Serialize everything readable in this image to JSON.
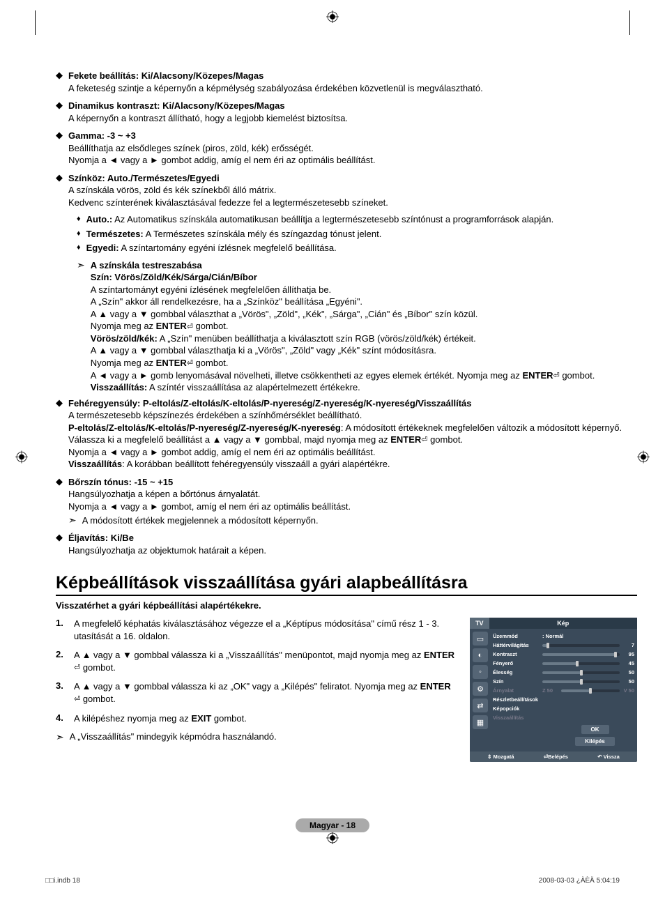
{
  "items": [
    {
      "title": "Fekete beállítás: Ki/Alacsony/Közepes/Magas",
      "body": [
        "A feketeség szintje a képernyőn a képmélység szabályozása érdekében közvetlenül is megválasztható."
      ]
    },
    {
      "title": "Dinamikus kontraszt: Ki/Alacsony/Közepes/Magas",
      "body": [
        "A képernyőn a kontraszt állítható, hogy a legjobb kiemelést biztosítsa."
      ]
    },
    {
      "title": "Gamma: -3 ~ +3",
      "body": [
        "Beállíthatja az elsődleges színek (piros, zöld, kék) erősségét.",
        "Nyomja a ◄ vagy a ► gombot addig, amíg el nem éri az optimális beállítást."
      ]
    },
    {
      "title": "Színköz: Auto./Természetes/Egyedi",
      "body": [
        "A színskála vörös, zöld és kék színekből álló mátrix.",
        "Kedvenc színterének kiválasztásával fedezze fel a legtermészetesebb színeket."
      ]
    }
  ],
  "subs": [
    {
      "k": "Auto.:",
      "v": "Az Automatikus színskála automatikusan beállítja a legtermészetesebb színtónust a programforrások alapján."
    },
    {
      "k": "Természetes:",
      "v": "A Természetes színskála mély és színgazdag tónust jelent."
    },
    {
      "k": "Egyedi:",
      "v": "A színtartomány egyéni ízlésnek megfelelő beállítása."
    }
  ],
  "custom": {
    "title": "A színskála testreszabása",
    "line1": "Szín: Vörös/Zöld/Kék/Sárga/Cián/Bíbor",
    "p1": "A színtartományt egyéni ízlésének megfelelően állíthatja be.",
    "p2": "A „Szín\" akkor áll rendelkezésre, ha a „Színköz\" beállítása „Egyéni\".",
    "p3": "A ▲ vagy a ▼ gombbal választhat a „Vörös\", „Zöld\", „Kék\", „Sárga\", „Cián\" és „Bíbor\" szín közül.",
    "p4a": "Nyomja meg az ",
    "enter": "ENTER",
    "p4b": " gombot.",
    "rgb_k": "Vörös/zöld/kék:",
    "rgb_v": " A „Szín\" menüben beállíthatja a kiválasztott szín RGB (vörös/zöld/kék) értékeit.",
    "p5": "A ▲ vagy a ▼ gombbal választhatja ki a „Vörös\", „Zöld\" vagy „Kék\" színt módosításra.",
    "p6": "A ◄ vagy a ► gomb lenyomásával növelheti, illetve csökkentheti az egyes elemek értékét. Nyomja meg az ",
    "reset_k": "Visszaállítás:",
    "reset_v": " A színtér visszaállítása az alapértelmezett értékekre."
  },
  "wb": {
    "title": "Fehéregyensúly: P-eltolás/Z-eltolás/K-eltolás/P-nyereség/Z-nyereség/K-nyereség/Visszaállítás",
    "p1": "A természetesebb képszínezés érdekében a színhőmérséklet beállítható.",
    "p2k": "P-eltolás/Z-eltolás/K-eltolás/P-nyereség/Z-nyereség/K-nyereség",
    "p2v": ": A módosított értékeknek megfelelően változik a módosított képernyő.",
    "p3": "Válassza ki a megfelelő beállítást a ▲ vagy a ▼ gombbal, majd nyomja meg az ",
    "p3b": " gombot.",
    "p4": "Nyomja a ◄ vagy a ► gombot addig, amíg el nem éri az optimális beállítást.",
    "p5k": "Visszaállítás",
    "p5v": ": A korábban beállított fehéregyensúly visszaáll a gyári alapértékre."
  },
  "skin": {
    "title": "Bőrszín tónus: -15 ~ +15",
    "p1": "Hangsúlyozhatja a képen a bőrtónus árnyalatát.",
    "p2": "Nyomja a ◄ vagy a ► gombot, amíg el nem éri az optimális beállítást.",
    "note": "A módosított értékek megjelennek a módosított képernyőn."
  },
  "edge": {
    "title": "Éljavítás: Ki/Be",
    "p1": "Hangsúlyozhatja az objektumok határait a képen."
  },
  "section": "Képbeállítások visszaállítása gyári alapbeállításra",
  "intro": "Visszatérhet a gyári képbeállítási alapértékekre.",
  "steps": [
    "A megfelelő képhatás kiválasztásához végezze el a „Képtípus módosítása\" című rész 1 - 3. utasítását a 16. oldalon.",
    "A ▲ vagy a ▼ gombbal válassza ki a „Visszaállítás\" menüpontot, majd nyomja meg az ENTER⏎ gombot.",
    "A ▲ vagy a ▼ gombbal válassza ki az „OK\" vagy a „Kilépés\" feliratot. Nyomja meg az ENTER⏎ gombot.",
    "A kilépéshez nyomja meg az EXIT gombot."
  ],
  "step_note": "A „Visszaállítás\" mindegyik képmódra használandó.",
  "osd": {
    "tv": "TV",
    "header": "Kép",
    "items": [
      {
        "label": "Üzemmód",
        "norm": ": Normál"
      },
      {
        "label": "Háttérvilágítás",
        "val": 7,
        "pct": 7
      },
      {
        "label": "Kontraszt",
        "val": 95,
        "pct": 95
      },
      {
        "label": "Fényerő",
        "val": 45,
        "pct": 45
      },
      {
        "label": "Élesség",
        "val": 50,
        "pct": 50
      },
      {
        "label": "Szín",
        "val": 50,
        "pct": 50
      },
      {
        "label": "Árnyalat",
        "pre": "Z 50",
        "val": "V  50",
        "pct": 50,
        "gray": true
      },
      {
        "label": "Részletbeállítások"
      },
      {
        "label": "Képopciók"
      },
      {
        "label": "Visszaállítás",
        "gray": true
      }
    ],
    "ok": "OK",
    "cancel": "Kilépés",
    "foot": {
      "move": "Mozgatá",
      "enter": "Belépés",
      "return": "Vissza"
    }
  },
  "pagenum": "Magyar  -  18",
  "footer_left": "□□i.indb   18",
  "footer_right": "2008-03-03   ¿ÀÈÄ 5:04:19"
}
